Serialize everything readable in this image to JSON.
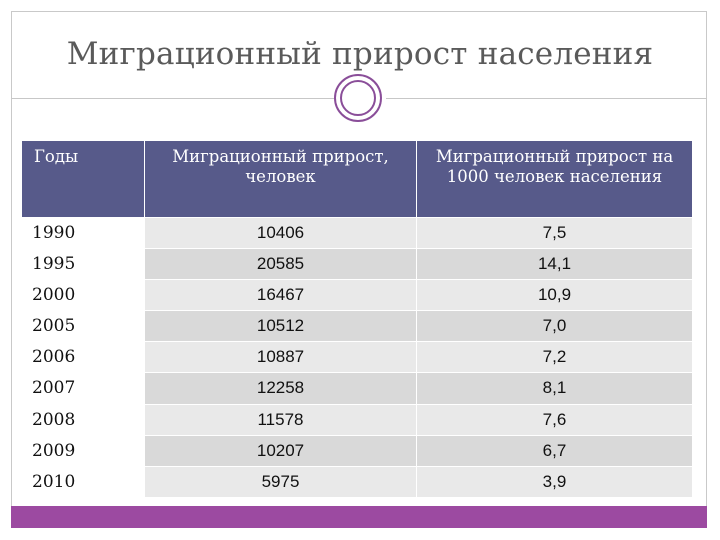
{
  "slide": {
    "title": "Миграционный прирост населения"
  },
  "table": {
    "headers": [
      "Годы",
      "Миграционный прирост, человек",
      "Миграционный прирост на 1000 человек населения"
    ],
    "rows": [
      {
        "year": "1990",
        "people": "10406",
        "per_1000": "7,5"
      },
      {
        "year": "1995",
        "people": "20585",
        "per_1000": "14,1"
      },
      {
        "year": "2000",
        "people": "16467",
        "per_1000": "10,9"
      },
      {
        "year": "2005",
        "people": "10512",
        "per_1000": "7,0"
      },
      {
        "year": "2006",
        "people": "10887",
        "per_1000": "7,2"
      },
      {
        "year": "2007",
        "people": "12258",
        "per_1000": "8,1"
      },
      {
        "year": "2008",
        "people": "11578",
        "per_1000": "7,6"
      },
      {
        "year": "2009",
        "people": "10207",
        "per_1000": "6,7"
      },
      {
        "year": "2010",
        "people": "5975",
        "per_1000": "3,9"
      }
    ]
  },
  "colors": {
    "header_bg": "#575a8a",
    "accent": "#9c4aa1",
    "cell_light": "#e9e9e9",
    "cell_dark": "#d9d9d9"
  }
}
